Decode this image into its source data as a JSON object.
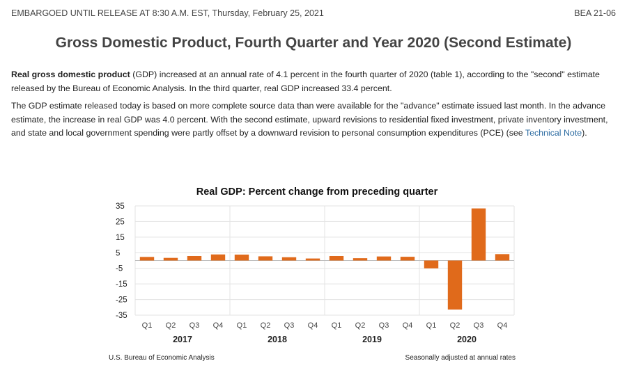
{
  "header": {
    "embargo": "EMBARGOED UNTIL RELEASE AT 8:30 A.M. EST, Thursday, February 25, 2021",
    "release_id": "BEA 21-06"
  },
  "page_title": "Gross Domestic Product, Fourth Quarter and Year 2020 (Second Estimate)",
  "paragraph1": {
    "bold_lead": "Real gross domestic product",
    "text": " (GDP) increased at an annual rate of 4.1 percent in the fourth quarter of 2020 (table 1), according to the \"second\" estimate released by the Bureau of Economic Analysis. In the third quarter, real GDP increased 33.4 percent."
  },
  "paragraph2": {
    "text": "The GDP estimate released today is based on more complete source data than were available for the \"advance\" estimate issued last month. In the advance estimate, the increase in real GDP was 4.0 percent. With the second estimate, upward revisions to residential fixed investment, private inventory investment, and state and local government spending were partly offset by a downward revision to personal consumption expenditures (PCE) (see ",
    "link_text": "Technical Note",
    "tail": ")."
  },
  "chart_data": {
    "type": "bar",
    "title": "Real GDP:  Percent change from preceding quarter",
    "categories": [
      "Q1",
      "Q2",
      "Q3",
      "Q4",
      "Q1",
      "Q2",
      "Q3",
      "Q4",
      "Q1",
      "Q2",
      "Q3",
      "Q4",
      "Q1",
      "Q2",
      "Q3",
      "Q4"
    ],
    "years": [
      "2017",
      "2018",
      "2019",
      "2020"
    ],
    "values": [
      2.3,
      1.7,
      2.9,
      3.9,
      3.8,
      2.7,
      2.1,
      1.3,
      2.9,
      1.5,
      2.6,
      2.4,
      -5.0,
      -31.4,
      33.4,
      4.1
    ],
    "ylim": [
      -35,
      35
    ],
    "yticks": [
      35,
      25,
      15,
      5,
      -5,
      -15,
      -25,
      -35
    ],
    "bar_color": "#e06a1b",
    "source_note": "U.S. Bureau of Economic Analysis",
    "adjust_note": "Seasonally adjusted at annual rates"
  }
}
